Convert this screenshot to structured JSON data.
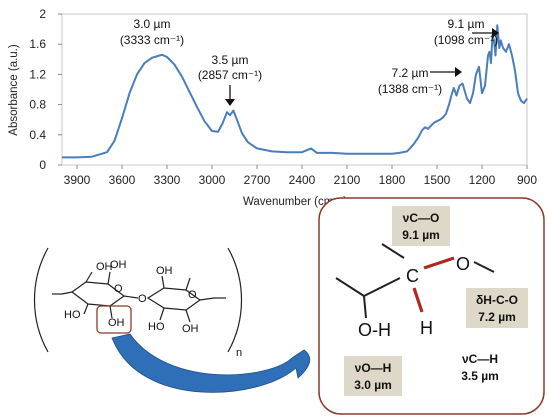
{
  "chart_data": {
    "type": "line",
    "xlabel": "Wavenumber (cm⁻¹)",
    "ylabel": "Absorbance (a.u.)",
    "xlim": [
      4000,
      900
    ],
    "ylim": [
      0,
      2
    ],
    "x_ticks": [
      "3900",
      "3600",
      "3300",
      "3000",
      "2700",
      "2400",
      "2100",
      "1800",
      "1500",
      "1200",
      "900"
    ],
    "y_ticks": [
      "0",
      "0.4",
      "0.8",
      "1.2",
      "1.6",
      "2"
    ],
    "line_color": "#4a7ebb",
    "series": [
      {
        "x": [
          4000,
          3900,
          3800,
          3700,
          3650,
          3600,
          3550,
          3500,
          3450,
          3400,
          3350,
          3333,
          3300,
          3250,
          3200,
          3150,
          3100,
          3050,
          3000,
          2960,
          2930,
          2900,
          2880,
          2857,
          2830,
          2800,
          2760,
          2700,
          2600,
          2500,
          2400,
          2340,
          2300,
          2200,
          2100,
          2000,
          1900,
          1800,
          1750,
          1700,
          1680,
          1650,
          1620,
          1600,
          1580,
          1560,
          1540,
          1520,
          1500,
          1480,
          1460,
          1440,
          1420,
          1400,
          1388,
          1370,
          1350,
          1330,
          1300,
          1280,
          1260,
          1240,
          1220,
          1200,
          1180,
          1160,
          1150,
          1140,
          1130,
          1120,
          1110,
          1098,
          1085,
          1075,
          1060,
          1040,
          1020,
          1000,
          980,
          960,
          940,
          920,
          900
        ],
        "y": [
          0.1,
          0.1,
          0.11,
          0.17,
          0.32,
          0.62,
          0.95,
          1.2,
          1.35,
          1.42,
          1.45,
          1.46,
          1.43,
          1.33,
          1.17,
          0.97,
          0.77,
          0.58,
          0.45,
          0.44,
          0.55,
          0.7,
          0.66,
          0.72,
          0.58,
          0.42,
          0.3,
          0.22,
          0.18,
          0.17,
          0.17,
          0.22,
          0.16,
          0.16,
          0.15,
          0.15,
          0.15,
          0.15,
          0.16,
          0.18,
          0.22,
          0.29,
          0.38,
          0.46,
          0.5,
          0.48,
          0.52,
          0.56,
          0.58,
          0.6,
          0.63,
          0.68,
          0.8,
          0.95,
          1.02,
          0.92,
          1.05,
          1.08,
          0.88,
          0.82,
          0.95,
          1.2,
          1.3,
          0.95,
          1.05,
          1.45,
          1.5,
          1.35,
          1.72,
          1.65,
          1.45,
          1.85,
          1.55,
          1.65,
          1.55,
          1.5,
          1.6,
          1.45,
          1.25,
          0.95,
          0.85,
          0.82,
          0.88
        ]
      }
    ],
    "annotations": [
      {
        "line1": "3.0 µm",
        "line2": "(3333 cm⁻¹)"
      },
      {
        "line1": "3.5 µm",
        "line2": "(2857 cm⁻¹)"
      },
      {
        "line1": "7.2 µm",
        "line2": "(1388 cm⁻¹)"
      },
      {
        "line1": "9.1 µm",
        "line2": "(1098 cm⁻¹)"
      }
    ]
  },
  "molecule": {
    "oh_labels": [
      "OH",
      "OH",
      "HO",
      "OH",
      "OH",
      "HO",
      "OH"
    ],
    "ring_oxygen_labels": [
      "O",
      "O"
    ],
    "bridge_oxygen": "O",
    "subscript_n": "n"
  },
  "inset": {
    "atom_c": "C",
    "atom_o": "O",
    "group_oh": "O-H",
    "atom_h": "H",
    "boxes": [
      {
        "line1": "νC—O",
        "line2": "9.1 µm"
      },
      {
        "line1": "δH-C-O",
        "line2": "7.2 µm"
      },
      {
        "line1": "νO—H",
        "line2": "3.0 µm"
      }
    ],
    "plain_label": {
      "line1": "νC—H",
      "line2": "3.5 µm"
    },
    "border_color": "#8b3a2a",
    "bond_highlight": "#b0281e",
    "box_fill": "#ddd8c8"
  }
}
